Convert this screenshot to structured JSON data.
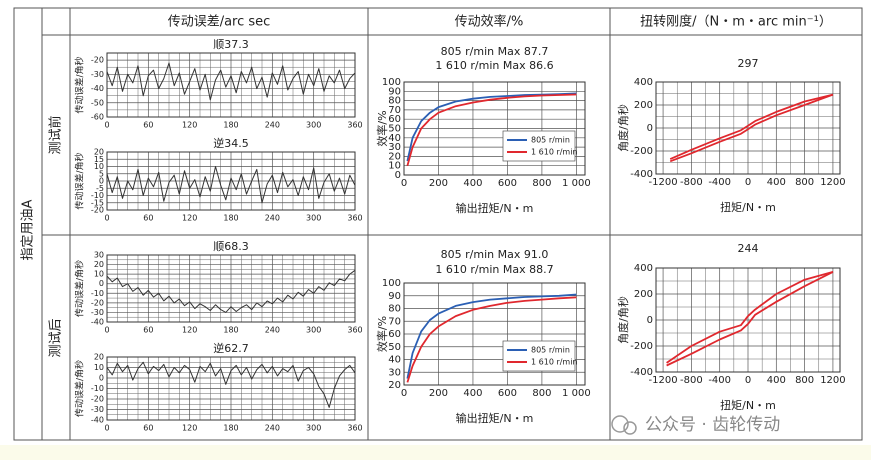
{
  "table": {
    "headers": [
      "传动误差/arc sec",
      "传动效率/%",
      "扭转刚度/（N・m・arc min⁻¹）"
    ],
    "row_group": "指定用油A",
    "rows": [
      "测试前",
      "测试后"
    ]
  },
  "watermark": "公众号 · 齿轮传动",
  "chart_data": [
    {
      "type": "line",
      "title": "顺37.3",
      "ylabel": "传动误差/角秒",
      "color": "#333333",
      "grid": true,
      "x": [
        0,
        7.5,
        15,
        22.5,
        30,
        37.5,
        45,
        52.5,
        60,
        67.5,
        75,
        82.5,
        90,
        97.5,
        105,
        112.5,
        120,
        127.5,
        135,
        142.5,
        150,
        157.5,
        165,
        172.5,
        180,
        187.5,
        195,
        202.5,
        210,
        217.5,
        225,
        232.5,
        240,
        247.5,
        255,
        262.5,
        270,
        277.5,
        285,
        292.5,
        300,
        307.5,
        315,
        322.5,
        330,
        337.5,
        345,
        352.5,
        360
      ],
      "values": [
        -28,
        -38,
        -25,
        -42,
        -30,
        -36,
        -24,
        -45,
        -31,
        -27,
        -40,
        -33,
        -22,
        -38,
        -29,
        -44,
        -35,
        -26,
        -41,
        -30,
        -48,
        -34,
        -27,
        -39,
        -31,
        -43,
        -28,
        -36,
        -25,
        -40,
        -32,
        -46,
        -29,
        -37,
        -24,
        -41,
        -33,
        -28,
        -44,
        -30,
        -38,
        -26,
        -42,
        -31,
        -36,
        -27,
        -40,
        -33,
        -29
      ],
      "xlim": [
        0,
        360
      ],
      "xticks": [
        0,
        60,
        120,
        180,
        240,
        300,
        360
      ],
      "ylim": [
        -60,
        -15
      ],
      "yticks": [
        -20,
        -30,
        -40,
        -50,
        -60
      ]
    },
    {
      "type": "line",
      "title": "逆34.5",
      "ylabel": "传动误差/角秒",
      "color": "#333333",
      "grid": true,
      "x": [
        0,
        7.5,
        15,
        22.5,
        30,
        37.5,
        45,
        52.5,
        60,
        67.5,
        75,
        82.5,
        90,
        97.5,
        105,
        112.5,
        120,
        127.5,
        135,
        142.5,
        150,
        157.5,
        165,
        172.5,
        180,
        187.5,
        195,
        202.5,
        210,
        217.5,
        225,
        232.5,
        240,
        247.5,
        255,
        262.5,
        270,
        277.5,
        285,
        292.5,
        300,
        307.5,
        315,
        322.5,
        330,
        337.5,
        345,
        352.5,
        360
      ],
      "values": [
        5,
        -8,
        3,
        -12,
        0,
        -6,
        8,
        -10,
        2,
        -4,
        6,
        -14,
        -1,
        4,
        -9,
        7,
        -5,
        1,
        -11,
        3,
        -7,
        10,
        -3,
        -13,
        2,
        -6,
        5,
        -9,
        0,
        8,
        -15,
        -2,
        4,
        -8,
        6,
        -4,
        1,
        -10,
        3,
        -6,
        9,
        -12,
        -1,
        5,
        -7,
        2,
        -9,
        4,
        -3
      ],
      "xlim": [
        0,
        360
      ],
      "xticks": [
        0,
        60,
        120,
        180,
        240,
        300,
        360
      ],
      "ylim": [
        -20,
        20
      ],
      "yticks": [
        20,
        15,
        10,
        5,
        0,
        -5,
        -10,
        -15,
        -20
      ]
    },
    {
      "type": "line",
      "title_lines": [
        "805 r/min  Max 87.7",
        "1 610 r/min  Max 86.6"
      ],
      "xlabel": "输出扭矩/N・m",
      "ylabel": "效率/%",
      "grid": true,
      "legend": "lower right",
      "x": [
        20,
        50,
        100,
        150,
        200,
        300,
        400,
        500,
        600,
        700,
        800,
        900,
        1000
      ],
      "series": [
        {
          "name": "805 r/min",
          "color": "#2b5fb4",
          "values": [
            15,
            40,
            58,
            67,
            73,
            79,
            82,
            84,
            85,
            86,
            86.5,
            87,
            87.7
          ]
        },
        {
          "name": "1 610 r/min",
          "color": "#e0282e",
          "values": [
            10,
            30,
            50,
            60,
            67,
            74,
            78,
            81,
            83,
            84.5,
            85.5,
            86,
            86.6
          ]
        }
      ],
      "xlim": [
        0,
        1050
      ],
      "xticks": [
        0,
        200,
        400,
        600,
        800,
        {
          "value": 1000,
          "label": "1 000"
        }
      ],
      "ylim": [
        0,
        100
      ],
      "yticks": [
        0,
        10,
        20,
        30,
        40,
        50,
        60,
        70,
        80,
        90,
        100
      ]
    },
    {
      "type": "line",
      "title": "297",
      "xlabel": "扭矩/N・m",
      "ylabel": "角度/角秒",
      "grid": true,
      "x": [
        -1100,
        -800,
        -400,
        -100,
        0,
        100,
        400,
        800,
        1200
      ],
      "series": [
        {
          "color": "#e0282e",
          "values": [
            -290,
            -220,
            -120,
            -50,
            -10,
            30,
            110,
            200,
            290
          ]
        },
        {
          "color": "#e0282e",
          "values": [
            -270,
            -190,
            -90,
            -20,
            20,
            60,
            140,
            230,
            290
          ]
        }
      ],
      "xlim": [
        -1300,
        1300
      ],
      "xticks": [
        -1200,
        -800,
        -400,
        0,
        400,
        800,
        1200
      ],
      "ylim": [
        -400,
        400
      ],
      "yticks": [
        400,
        200,
        0,
        -200,
        -400
      ]
    },
    {
      "type": "line",
      "title": "顺68.3",
      "ylabel": "传动误差/角秒",
      "color": "#333333",
      "grid": true,
      "x": [
        0,
        7.5,
        15,
        22.5,
        30,
        37.5,
        45,
        52.5,
        60,
        67.5,
        75,
        82.5,
        90,
        97.5,
        105,
        112.5,
        120,
        127.5,
        135,
        142.5,
        150,
        157.5,
        165,
        172.5,
        180,
        187.5,
        195,
        202.5,
        210,
        217.5,
        225,
        232.5,
        240,
        247.5,
        255,
        262.5,
        270,
        277.5,
        285,
        292.5,
        300,
        307.5,
        315,
        322.5,
        330,
        337.5,
        345,
        352.5,
        360
      ],
      "values": [
        8,
        2,
        6,
        -3,
        0,
        -8,
        -4,
        -12,
        -7,
        -14,
        -10,
        -18,
        -13,
        -20,
        -16,
        -23,
        -19,
        -26,
        -21,
        -24,
        -28,
        -22,
        -27,
        -30,
        -24,
        -29,
        -25,
        -22,
        -27,
        -20,
        -24,
        -18,
        -21,
        -15,
        -19,
        -12,
        -16,
        -9,
        -13,
        -6,
        -10,
        -3,
        -7,
        1,
        -2,
        5,
        3,
        10,
        14
      ],
      "xlim": [
        0,
        360
      ],
      "xticks": [
        0,
        60,
        120,
        180,
        240,
        300,
        360
      ],
      "ylim": [
        -40,
        30
      ],
      "yticks": [
        30,
        20,
        10,
        0,
        -10,
        -20,
        -30,
        -40
      ]
    },
    {
      "type": "line",
      "title": "逆62.7",
      "ylabel": "传动误差/角秒",
      "color": "#333333",
      "grid": true,
      "x": [
        0,
        7.5,
        15,
        22.5,
        30,
        37.5,
        45,
        52.5,
        60,
        67.5,
        75,
        82.5,
        90,
        97.5,
        105,
        112.5,
        120,
        127.5,
        135,
        142.5,
        150,
        157.5,
        165,
        172.5,
        180,
        187.5,
        195,
        202.5,
        210,
        217.5,
        225,
        232.5,
        240,
        247.5,
        255,
        262.5,
        270,
        277.5,
        285,
        292.5,
        300,
        307.5,
        315,
        322.5,
        330,
        337.5,
        345,
        352.5,
        360
      ],
      "values": [
        10,
        3,
        14,
        6,
        12,
        -2,
        9,
        15,
        4,
        11,
        7,
        13,
        1,
        10,
        5,
        12,
        8,
        -4,
        11,
        6,
        14,
        2,
        9,
        -6,
        7,
        12,
        3,
        10,
        -1,
        8,
        13,
        5,
        11,
        2,
        9,
        6,
        12,
        -3,
        7,
        10,
        4,
        -8,
        -15,
        -28,
        -10,
        2,
        8,
        12,
        5
      ],
      "xlim": [
        0,
        360
      ],
      "xticks": [
        0,
        60,
        120,
        180,
        240,
        300,
        360
      ],
      "ylim": [
        -40,
        20
      ],
      "yticks": [
        20,
        10,
        0,
        -10,
        -20,
        -30,
        -40
      ]
    },
    {
      "type": "line",
      "title_lines": [
        "805 r/min  Max 91.0",
        "1 610 r/min  Max 88.7"
      ],
      "xlabel": "输出扭矩/N・m",
      "ylabel": "效率/%",
      "grid": true,
      "legend": "lower right",
      "x": [
        20,
        50,
        100,
        150,
        200,
        300,
        400,
        500,
        600,
        700,
        800,
        900,
        1000
      ],
      "series": [
        {
          "name": "805 r/min",
          "color": "#2b5fb4",
          "values": [
            25,
            45,
            62,
            71,
            76,
            82,
            85,
            87,
            88,
            89,
            89.5,
            90,
            91.0
          ]
        },
        {
          "name": "1 610 r/min",
          "color": "#e0282e",
          "values": [
            22,
            35,
            50,
            60,
            66,
            74,
            79,
            82,
            84.5,
            86,
            87,
            88,
            88.7
          ]
        }
      ],
      "xlim": [
        0,
        1050
      ],
      "xticks": [
        0,
        200,
        400,
        600,
        800,
        {
          "value": 1000,
          "label": "1 000"
        }
      ],
      "ylim": [
        20,
        100
      ],
      "yticks": [
        20,
        30,
        40,
        50,
        60,
        70,
        80,
        90,
        100
      ]
    },
    {
      "type": "line",
      "title": "244",
      "xlabel": "扭矩/N・m",
      "ylabel": "角度/角秒",
      "grid": true,
      "x": [
        -1150,
        -800,
        -400,
        -100,
        0,
        100,
        400,
        800,
        1200
      ],
      "series": [
        {
          "color": "#e0282e",
          "values": [
            -350,
            -260,
            -150,
            -80,
            -30,
            40,
            140,
            260,
            370
          ]
        },
        {
          "color": "#e0282e",
          "values": [
            -330,
            -200,
            -90,
            -40,
            30,
            80,
            200,
            310,
            370
          ]
        }
      ],
      "xlim": [
        -1300,
        1300
      ],
      "xticks": [
        -1200,
        -800,
        -400,
        0,
        400,
        800,
        1200
      ],
      "ylim": [
        -400,
        400
      ],
      "yticks": [
        400,
        200,
        0,
        -200,
        -400
      ]
    }
  ]
}
